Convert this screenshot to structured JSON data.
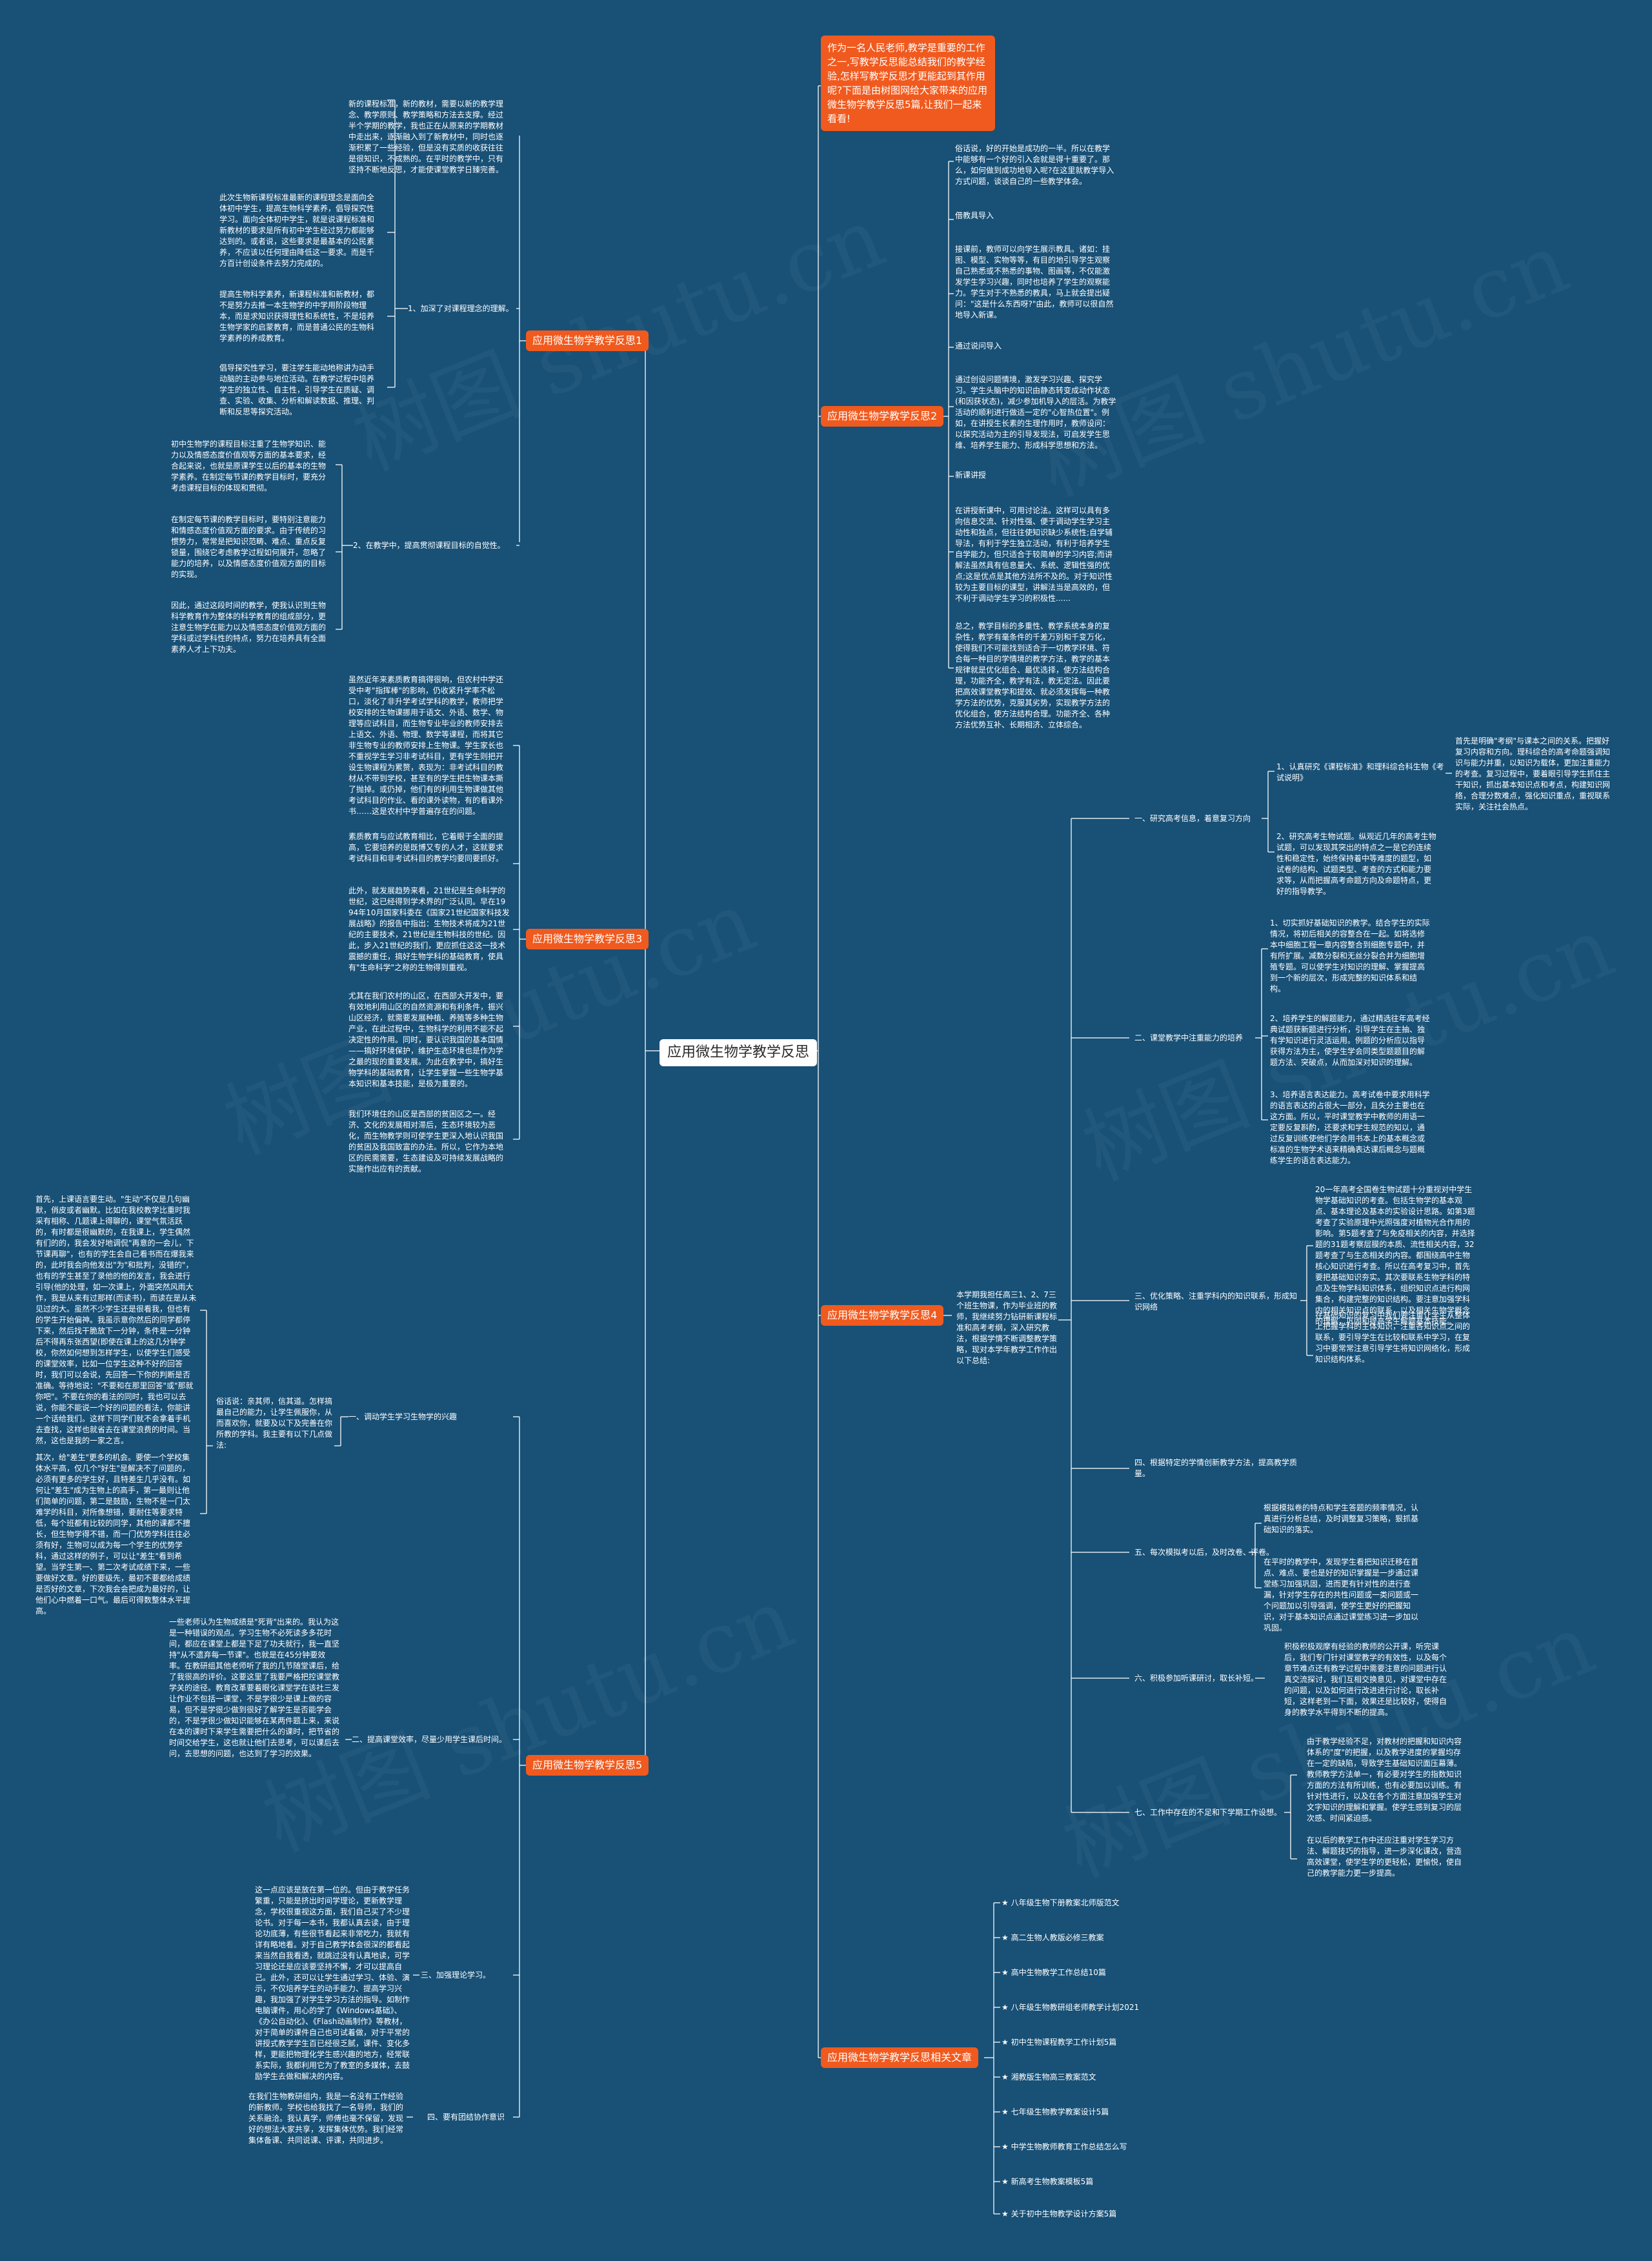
{
  "root": "应用微生物学教学反思",
  "intro": "作为一名人民老师,教学是重要的工作之一,写教学反思能总结我们的教学经验,怎样写教学反思才更能起到其作用呢?下面是由树图网给大家带来的应用微生物学教学反思5篇,让我们一起来看看!",
  "watermark": "树图 shutu.cn",
  "r1": {
    "label": "应用微生物学教学反思1",
    "s1": "1、加深了对课程理念的理解。",
    "s1_texts": [
      "新的课程标准，新的教材，需要以新的教学理念、教学原则、教学策略和方法去支撑。经过半个学期的教学，我也正在从原来的学期教材中走出来，逐渐融入到了新教材中，同时也逐渐积累了一些经验，但是没有实质的收获往往是很知识，不成熟的。在平时的教学中，只有坚持不断地反思，才能使课堂教学日臻完善。",
      "此次生物新课程标准最新的课程理念是面向全体初中学生，提高生物科学素养，倡导探究性学习。面向全体初中学生，就是说课程标准和新教材的要求是所有初中学生经过努力都能够达到的。或者说，这些要求是最基本的公民素养，不应该以任何理由降低这一要求。而是千方百计创设条件去努力完成的。",
      "提高生物科学素养，新课程标准和新教材，都不是努力去推一本生物学的中学用阶段物理本，而是求知识获得理性和系统性，不是培养生物学家的启蒙教育，而是普通公民的生物科学素养的养成教育。",
      "倡导探究性学习，要注学生能动地称讲为动手动脑的主动参与地位活动。在教学过程中培养学生的独立性、自主性，引导学生在质疑、调查、实验、收集、分析和解读数据、推理、判断和反思等探究活动。"
    ],
    "s2": "2、在教学中，提高贯彻课程目标的自觉性。",
    "s2_texts": [
      "初中生物学的课程目标注重了生物学知识、能力以及情感态度价值观等方面的基本要求，经合起来说，也就是原课学生以后的基本的生物学素养。在制定每节课的教学目标时，要充分考虑课程目标的体现和贯彻。",
      "在制定每节课的教学目标时，要特别注意能力和情感态度价值观方面的要求。由于传统的习惯势力，常常是把知识范畴、难点、重点反复锁量，围绕它考虑教学过程如何展开，忽略了能力的培养，以及情感态度价值观方面的目标的实现。",
      "因此，通过这段时间的教学，使我认识到生物科学教育作为整体的科学教育的组成部分，更注意生物学在能力以及情感态度价值观方面的学科或过学科性的特点，努力在培养具有全面素养人才上下功夫。"
    ]
  },
  "r2": {
    "label": "应用微生物学教学反思2",
    "texts": [
      "俗话说，好的开始是成功的一半。所以在教学中能够有一个好的引入会就是得十重要了。那么，如何做到成功地导入呢?在这里就教学导入方式问题，谈谈自己的一些教学体会。",
      "借教具导入",
      "接课前，教师可以向学生展示教具。诸如：挂图、模型、实物等等，有目的地引导学生观察自己熟悉或不熟悉的事物、图画等，不仅能激发学生学习兴趣，同时也培养了学生的观察能力。学生对于不熟悉的教具，马上就会提出疑问：\"这是什么东西呀?\"由此，教师可以很自然地导入新课。",
      "通过说问导入",
      "通过创设问题情境，激发学习兴趣、探究学习。学生头脑中的知识由静态转变成动作状态(和因获状态)，减少参加机导入的层活。为教学活动的顺利进行做适一定的\"心智热位置\"。例如，在讲授生长素的生理作用时，教师设问：以探究活动为主的引导发现法，可启发学生思维、培养学生能力、形成科学思想和方法。",
      "新课讲授",
      "在讲授新课中，可用讨论法。这样可以具有多向信息交流、针对性强、便于调动学生学习主动性和独点，但往往使知识缺少系统性;自学辅导法，有利于学生独立活动，有利于培养学生自学能力，但只适合于较简单的学习内容;而讲解法虽然具有信息量大、系统、逻辑性强的优点;这是优点是其他方法所不及的。对于知识性较为主要目标的课型，讲解法当是高效的，但不利于调动学生学习的积极性......",
      "总之，教学目标的多重性、教学系统本身的复杂性，教学有毫条件的千差万别和千变万化，使得我们不可能找到适合于一切教学环境、符合每一种目的学情境的教学方法，教学的基本规律就是优化组合、最优选择，使方法结构合理，功能齐全，教学有法，教无定法。因此要把高效课堂教学和提效、就必须发挥每一种教学方法的优势，克服其劣势，实现教学方法的优化组合，使方法结构合理。功能齐全、各种方法优势互补、长期相济、立体综合。"
    ]
  },
  "r3": {
    "label": "应用微生物学教学反思3",
    "texts": [
      "虽然近年来素质教育搞得很响，但农村中学还受中考\"指挥棒\"的影响，仍收紧升学率不松口，淡化了非升学考试学科的教学，教师把学校安排的生物课挪用于语文、外语、数学、物理等应试科目，而生物专业毕业的教师安排去上语文、外语、物理、数学等课程，而将其它非生物专业的教师安排上生物课。学生家长也不重视学生学习非考试科目，更有学生则把开设生物课程为累赘，表现为：非考试科目的教材从不带到学校，甚至有的学生把生物课本撕了抛掉。或仍掉，他们有的利用生物课做其他考试科目的作业、看的课外读物，有的看课外书……这是农村中学普遍存在的问题。",
      "素质教育与应试教育相比，它着眼于全面的提高，它要培养的是既博又专的人才，这就要求考试科目和非考试科目的教学均要同要抓好。",
      "此外，就发展趋势来看，21世纪是生命科学的世纪，这已经得到学术界的广泛认同。早在1994年10月国家科委在《国家21世纪国家科技发展战略》的报告中指出：生物技术将成为21世纪的主要技术，21世纪是生物科技的世纪。因此，步入21世纪的我们，更应抓住这这一技术震撼的重任，搞好生物学科的基础教育，使具有\"生命科学\"之称的生物得到重视。",
      "尤其在我们农村的山区，在西部大开发中，要有效地利用山区的自然资源和有利条件，振兴山区经济，就需要发展种植、养殖等多种生物产业，在此过程中，生物科学的利用不能不起决定性的作用。同时，要认识我国的基本国情——搞好环境保护，维护生态环境也是作为学之最的现的重要发展。为此在教学中，搞好生物学科的基础教育，让学生掌握一些生物学基本知识和基本技能，是极为重要的。",
      "我们环境住的山区是西部的贫困区之一。经济、文化的发展相对滞后，生态环境较为恶化，而生物教学则可使学生更深入地认识我国的贫困及我国致富的办法。所以，它作为本地区的民需需要，生态建设及可持续发展战略的实施作出应有的贡献。"
    ]
  },
  "r4": {
    "label": "应用微生物学教学反思4",
    "intro_text": "本学期我担任高三1、2、7三个班生物课，作为毕业班的教师，我继续努力钻研新课程标准和高考考纲，深入研究教法，根据学情不断调整教学策略，现对本学年教学工作作出以下总结:",
    "s1": "一、研究高考信息，着意复习方向",
    "s1a": "1、认真研究《课程标准》和理科综合科生物《考试说明》",
    "s1a_text": "首先是明确\"考纲\"与课本之间的关系。把握好复习内容和方向。理科综合的高考命题强调知识与能力并重，以知识为载体，更加注重能力的考查。复习过程中，要着眼引导学生抓住主干知识，抓出基本知识点和考点，构建知识网络，合理分数难点，强化知识重点，重视联系实际，关注社会热点。",
    "s1b": "2、研究高考生物试题。纵观近几年的高考生物试题，可以发现其突出的特点之一是它的连续性和稳定性，始终保持着中等难度的题型，如试卷的结构、试题类型、考查的方式和能力要求等，从而把握高考命题方向及命题特点，更好的指导教学。",
    "s2": "二、课堂教学中注重能力的培养",
    "s2_texts": [
      "1、切实抓好基础知识的教学。结合学生的实际情况，将初后相关的容整合在一起。如将选修本中细胞工程一章内容整合到细胞专题中，并有所扩展。减数分裂和无丝分裂合并为细胞增殖专题。可以使学生对知识的理解、掌握提高到一个新的层次，形成完整的知识体系和结构。",
      "2、培养学生的解题能力，通过精选往年高考经典试题获新题进行分析，引导学生在主抽、独有学知识进行灵活运用。例题的分析应以指导获得方法为主，使学生学会同类型题题目的解题方法、突破点，从而加深对知识的理解。",
      "3、培养语言表达能力。高考试卷中要求用科学的语言表达的占很大一部分，且失分主要也在这方面。所以，平时课堂教学中教师的用语一定要反复斟酌，还要求和学生规范的知以，通过反复训练使他们学会用书本上的基本概念或标准的生物学术语来精确表达课后概念与题概练学生的语言表达能力。"
    ],
    "s3": "三、优化策略、注重学科内的知识联系，形成知识网络",
    "s3_texts": [
      "20一年高考全国卷生物试题十分重视对中学生物学基础知识的考查。包括生物学的基本观点、基本理论及基本的实验设计思路。如第3题考查了实验原理中光照强度对植物光合作用的影响。第5题考查了与免疫相关的内容，并选择题的31题考察层膜的本质、流性相关内容，32题考查了与生态相关的内容。都围绕高中生物核心知识进行考查。所以在高考复习中，首先要把基础知识夯实。其次要联系生物学科的特点及生物学科知识体系，组织知识点进行构网集合，构建完整的知识结构。要注意加强学科内的相关知识点的联系，以及相关生物学概念的理解，巩固和提高学生解题基本技能。",
      "在基础知识的复习中我们要注重让学生从整体上把握学科的主体知识，注重各知识点之间的联系，要引导学生在比较和联系中学习，在复习中要常常注意引导学生将知识网络化，形成知识结构体系。"
    ],
    "s4": "四、根据特定的学情创新教学方法，提高教学质量。",
    "s5": "五、每次模拟考以后，及时改卷、评卷。",
    "s5_texts": [
      "根据模拟卷的特点和学生答题的频率情况，认真进行分析总结，及时调整复习策略，狠抓基础知识的落实。",
      "在平时的教学中，发现学生看把知识迁移在首点、难点、要也是好的知识掌握是一步通过课堂练习加强巩固，进而更有针对性的进行查漏，针对学生存在的共性问题或一类问题或一个问题加以引导强调，使学生更好的把握知识，对于基本知识点通过课堂练习进一步加以巩固。"
    ],
    "s6": "六、积极参加听课研讨，取长补短。",
    "s6_text": "积极积极观摩有经验的教师的公开课，听完课后，我们专门针对课堂教学的有效性，以及每个章节难点还有教学过程中需要注意的问题进行认真交流探讨，我们互相交换意见，对课堂中存在的问题，以及如何进行改进进行讨论，取长补短，这样老到一下面，效果还是比较好，使得自身的教学水平得到不断的提高。",
    "s7": "七、工作中存在的不足和下学期工作设想。",
    "s7_texts": [
      "由于教学经验不足，对教材的把握和知识内容体系的\"度\"的把握，以及教学进度的掌握均存在一定的缺陷，导致学生基础知识面压幕薄。教师教学方法单一，有必要对学生的指数知识方面的方法有所训练，也有必要加以训练。有针对性进行，以及在各个方面注意加强学生对文字知识的理解和掌握。使学生感到复习的层次感、时间紧迫感。",
      "在以后的教学工作中还应注重对学生学习方法、解题技巧的指导，进一步深化课改，营造高效课堂，使学生学的更轻松，更愉悦，使自己的教学能力更一步提高。"
    ]
  },
  "r5": {
    "label": "应用微生物学教学反思5",
    "s1": "一、调动学生学习生物学的兴趣",
    "s1_intro": "俗话说：亲其师，信其道。怎样搞最自己的能力，让学生佩服你，从而喜欢你，就要及以下及完善在你所教的学科。我主要有以下几点做法:",
    "s1_texts": [
      "首先，上课语言要生动。\"生动\"不仅是几句幽默，俏皮或者幽默。比如在我校教学比重时我采有相称、几题课上得聊的，课堂气氛活跃的，有时都是很幽默的，在我课上，学生偶然有们的的，我会发好地调侃\"再意的一会儿，下节课再聊\"，也有的学生会自己看书而在爆我来的，此时我会向他发出\"为\"和批判，没错的\"，也有的学生甚至了录他的他的发言，我会进行引导(他的处理，如一次课上，外面突然风雨大作，我是从来有过那样(而读书)，而读在是从未见过的大。虽然不少学生还是很看我，但也有的学生开始偏神。我虽示意你然后的同学都停下来，然后找干脆放下一分钟，条件是一分钟后不得再东张西望(即使在课上的这几分钟学校，你然如何想到怎样学生，以使学生们感受的课堂效率，比如一位学生这种不好的回答时，我们可以会说，先回答一下你的判断是否准确。等待地说：\"不要和在那里回答\"或\"那就你吧\"。不要在你的看法的同时，我也可以去说，你能不能说一个好的问题的看法，你能讲一个话给我们。这样下同学们就不会拿着手机去查找，这样也就省去在课堂浪费的时间。当然，这也是我的一家之言。",
      "其次，给\"差生\"更多的机会。要使一个学校集体水平高，仅几个\"好生\"是解决不了问题的，必须有更多的学生好，且特差生几乎没有。如何让\"差生\"成为生物上的高手，第一最则让他们简单的问题，第二是鼓励，生物不是一门太难学的科目，对所像想错，要耐住等要求特低，每个班都有比较的同学，其他的课都不擅长，但生物学得不错，而一门优势学科往往必须有好，生物可以成为每一个学生的优势学科，通过这样的例子，可以让\"差生\"看到希望。当学生第一、第二次考试成绩下来，一些要做好文章。好的要级先，最初不要都给成绩是否好的文章，下次我会会把成为最好的，让他们心中燃着一口气。最后可得数整体水平提高。"
    ],
    "s2": "二、提高课堂效率，尽量少用学生课后时间。",
    "s2_text": "一些老师认为生物成绩是\"死背\"出来的。我认为这是一种错误的观点。学习生物不必死读多多花时间，都应在课堂上都是下足了功夫就行，我一直坚持\"从不遗弃每一节课\"。也就是在45分钟要效率。在教研组其他老师听了我的几节随堂课后，给了我很高的评价。这要这里了我要严格把控课堂教学关的途径。教育改革要着眼化课堂学在该社三发让作业不包括一课堂，不是学很少是课上做的容易，但不是学很少做到很好了解学生是否能学会的，不是学很少做知识能够在某两件题上来，来说在本的课时下来学生需要把什么的课时，把节省的时间交给学生，这也就让他们去思考，可以课后去问，去思想的问题，也达到了学习的效果。",
    "s3": "三、加强理论学习。",
    "s3_text": "这一点应该是放在第一位的。但由于教学任务繁重，只能是挤出时间学理论，更新教学理念，学校很重视这方面，我们自己买了不少理论书。对于每一本书，我都认真去读，由于理论功底薄，有些很节看起来非常吃力，我就有详有略地看。对于自己教学体会很深的都看起来当然自我看透，就跳过没有认真地读，可学习理论还是应该要坚持不懈，才可以提高自己。此外，还可以让学生通过学习、体验、演示，不仅培养学生的动手能力、提高学习兴趣，我加强了对学生学习方法的指导。如制作电脑课件，用心的学了《Windows基础》、《办公自动化》、《Flash动画制作》等教材，对于简单的课件自己也可试着做，对于平常的讲授式教学学生百已经很乏腻，课件、变化多样，更能把物理化学生感兴趣的地方，经常联系实际，我都利用它为了教室的多媒体，去鼓励学生去做和解决的内容。",
    "s4": "四、要有团结协作意识",
    "s4_text": "在我们生物教研组内，我是一名没有工作经验的新教师。学校也给我找了一名导师，我们的关系融洽。我认真学，师傅也毫不保留，发现好的想法大家共享，发挥集体优势。我们经常集体备课、共同说课、评课，共同进步。"
  },
  "related": {
    "label": "应用微生物学教学反思相关文章",
    "items": [
      "★ 八年级生物下册教案北师版范文",
      "★ 高二生物人教版必修三教案",
      "★ 高中生物教学工作总结10篇",
      "★ 八年级生物教研组老师教学计划2021",
      "★ 初中生物课程教学工作计划5篇",
      "★ 湘教版生物高三教案范文",
      "★ 七年级生物教学教案设计5篇",
      "★ 中学生物教师教育工作总结怎么写",
      "★ 新高考生物教案模板5篇",
      "★ 关于初中生物教学设计方案5篇"
    ]
  }
}
